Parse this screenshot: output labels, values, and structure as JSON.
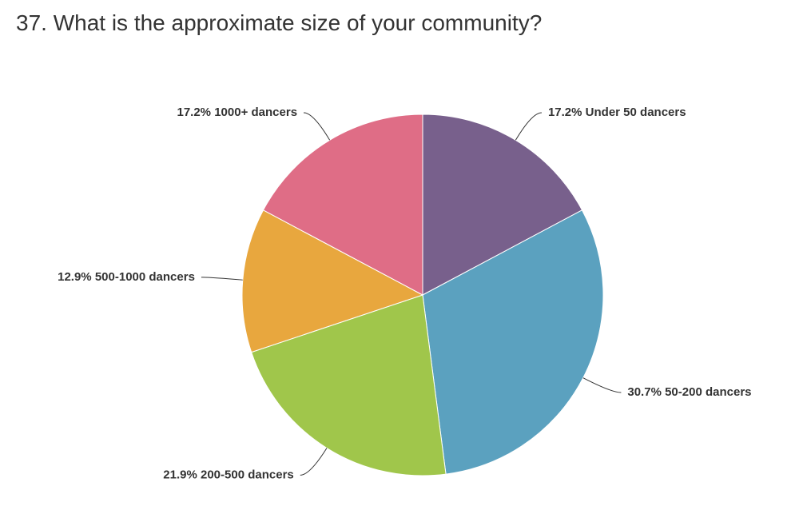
{
  "chart_data": {
    "type": "pie",
    "title": "37. What is the approximate size of your community?",
    "categories": [
      "Under 50 dancers",
      "50-200 dancers",
      "200-500 dancers",
      "500-1000 dancers",
      "1000+ dancers"
    ],
    "values": [
      17.2,
      30.7,
      21.9,
      12.9,
      17.2
    ],
    "value_labels": [
      "17.2%",
      "30.7%",
      "21.9%",
      "12.9%",
      "17.2%"
    ],
    "colors": [
      "#78608c",
      "#5ba1bf",
      "#a0c64b",
      "#e8a73e",
      "#df6d86"
    ]
  }
}
